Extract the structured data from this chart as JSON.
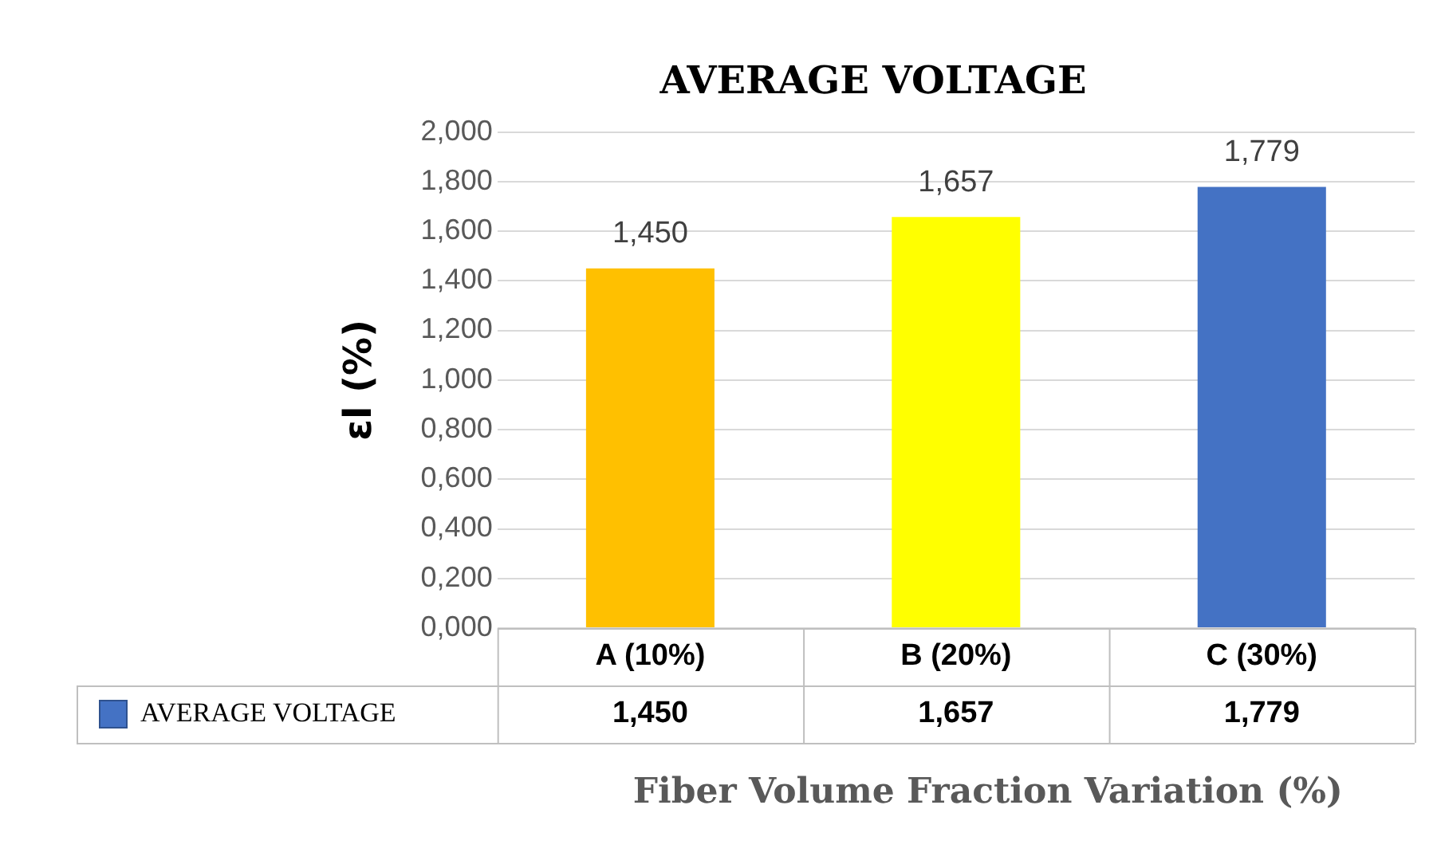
{
  "chart_data": {
    "type": "bar",
    "title": "AVERAGE VOLTAGE",
    "xlabel": "Fiber Volume Fraction Variation (%)",
    "ylabel": "εl (%)",
    "categories": [
      "A (10%)",
      "B (20%)",
      "C (30%)"
    ],
    "series": [
      {
        "name": "AVERAGE VOLTAGE",
        "color": "#4472c4",
        "colors": [
          "#ffc000",
          "#ffff00",
          "#4472c4"
        ],
        "values": [
          1.45,
          1.657,
          1.779
        ],
        "value_labels": [
          "1,450",
          "1,657",
          "1,779"
        ]
      }
    ],
    "ylim": [
      0,
      2
    ],
    "yticks": [
      {
        "value": 0,
        "label": "0,000"
      },
      {
        "value": 0.2,
        "label": "0,200"
      },
      {
        "value": 0.4,
        "label": "0,400"
      },
      {
        "value": 0.6,
        "label": "0,600"
      },
      {
        "value": 0.8,
        "label": "0,800"
      },
      {
        "value": 1,
        "label": "1,000"
      },
      {
        "value": 1.2,
        "label": "1,200"
      },
      {
        "value": 1.4,
        "label": "1,400"
      },
      {
        "value": 1.6,
        "label": "1,600"
      },
      {
        "value": 1.8,
        "label": "1,800"
      },
      {
        "value": 2,
        "label": "2,000"
      }
    ],
    "grid": "y",
    "legend": "bottom left"
  }
}
